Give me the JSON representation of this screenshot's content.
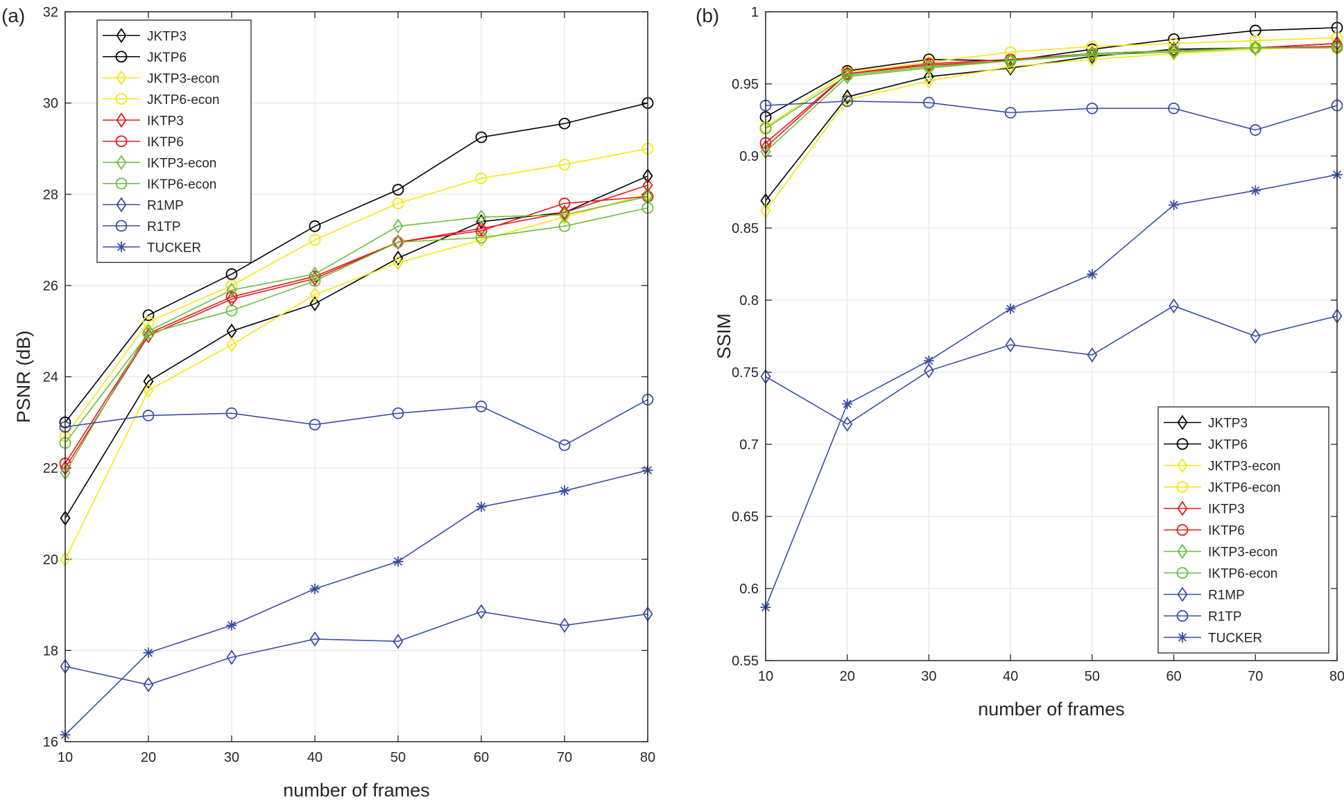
{
  "figure": {
    "legend_entries": [
      "JKTP3",
      "JKTP6",
      "JKTP3-econ",
      "JKTP6-econ",
      "IKTP3",
      "IKTP6",
      "IKTP3-econ",
      "IKTP6-econ",
      "R1MP",
      "R1TP",
      "TUCKER"
    ]
  },
  "chart_data": [
    {
      "type": "line",
      "panel_label": "(a)",
      "xlabel": "number of frames",
      "ylabel": "PSNR (dB)",
      "xlim": [
        10,
        80
      ],
      "ylim": [
        16,
        32
      ],
      "xticks": [
        10,
        20,
        30,
        40,
        50,
        60,
        70,
        80
      ],
      "yticks": [
        16,
        18,
        20,
        22,
        24,
        26,
        28,
        30,
        32
      ],
      "grid": true,
      "legend": "top-left",
      "x": [
        10,
        20,
        30,
        40,
        50,
        60,
        70,
        80
      ],
      "series": [
        {
          "name": "JKTP3",
          "color": "#000000",
          "marker": "diamond",
          "values": [
            20.9,
            23.9,
            25.0,
            25.6,
            26.6,
            27.4,
            27.6,
            28.4
          ]
        },
        {
          "name": "JKTP6",
          "color": "#000000",
          "marker": "circle",
          "values": [
            23.0,
            25.35,
            26.25,
            27.3,
            28.1,
            29.25,
            29.55,
            30.0
          ]
        },
        {
          "name": "JKTP3-econ",
          "color": "#f5e60e",
          "marker": "diamond",
          "values": [
            20.0,
            23.7,
            24.7,
            25.8,
            26.5,
            27.0,
            27.5,
            28.0
          ]
        },
        {
          "name": "JKTP6-econ",
          "color": "#f5e60e",
          "marker": "circle",
          "values": [
            22.7,
            25.2,
            26.0,
            27.0,
            27.8,
            28.35,
            28.65,
            29.0
          ]
        },
        {
          "name": "IKTP3",
          "color": "#e41a1c",
          "marker": "diamond",
          "values": [
            22.0,
            24.9,
            25.7,
            26.15,
            26.95,
            27.25,
            27.6,
            28.2
          ]
        },
        {
          "name": "IKTP6",
          "color": "#e41a1c",
          "marker": "circle",
          "values": [
            22.1,
            24.95,
            25.75,
            26.2,
            26.95,
            27.2,
            27.8,
            27.95
          ]
        },
        {
          "name": "IKTP3-econ",
          "color": "#6abf3a",
          "marker": "diamond",
          "values": [
            21.9,
            25.0,
            25.9,
            26.25,
            27.3,
            27.5,
            27.55,
            27.95
          ]
        },
        {
          "name": "IKTP6-econ",
          "color": "#6abf3a",
          "marker": "circle",
          "values": [
            22.55,
            24.95,
            25.45,
            26.1,
            26.95,
            27.05,
            27.3,
            27.7
          ]
        },
        {
          "name": "R1MP",
          "color": "#3a4ea6",
          "marker": "diamond",
          "values": [
            17.65,
            17.25,
            17.85,
            18.25,
            18.2,
            18.85,
            18.55,
            18.8
          ]
        },
        {
          "name": "R1TP",
          "color": "#3a4ea6",
          "marker": "circle",
          "values": [
            22.9,
            23.15,
            23.2,
            22.95,
            23.2,
            23.35,
            22.5,
            23.5
          ]
        },
        {
          "name": "TUCKER",
          "color": "#3a4ea6",
          "marker": "asterisk",
          "values": [
            16.15,
            17.95,
            18.55,
            19.35,
            19.95,
            21.15,
            21.5,
            21.95
          ]
        }
      ]
    },
    {
      "type": "line",
      "panel_label": "(b)",
      "xlabel": "number of frames",
      "ylabel": "SSIM",
      "xlim": [
        10,
        80
      ],
      "ylim": [
        0.55,
        1.0
      ],
      "xticks": [
        10,
        20,
        30,
        40,
        50,
        60,
        70,
        80
      ],
      "yticks": [
        0.55,
        0.6,
        0.65,
        0.7,
        0.75,
        0.8,
        0.85,
        0.9,
        0.95,
        1
      ],
      "grid": true,
      "legend": "bottom-right",
      "x": [
        10,
        20,
        30,
        40,
        50,
        60,
        70,
        80
      ],
      "series": [
        {
          "name": "JKTP3",
          "color": "#000000",
          "marker": "diamond",
          "values": [
            0.869,
            0.941,
            0.955,
            0.961,
            0.969,
            0.974,
            0.975,
            0.978
          ]
        },
        {
          "name": "JKTP6",
          "color": "#000000",
          "marker": "circle",
          "values": [
            0.927,
            0.959,
            0.967,
            0.966,
            0.974,
            0.981,
            0.987,
            0.989
          ]
        },
        {
          "name": "JKTP3-econ",
          "color": "#f5e60e",
          "marker": "diamond",
          "values": [
            0.862,
            0.939,
            0.952,
            0.962,
            0.967,
            0.971,
            0.974,
            0.976
          ]
        },
        {
          "name": "JKTP6-econ",
          "color": "#f5e60e",
          "marker": "circle",
          "values": [
            0.92,
            0.958,
            0.965,
            0.972,
            0.976,
            0.978,
            0.98,
            0.982
          ]
        },
        {
          "name": "IKTP3",
          "color": "#e41a1c",
          "marker": "diamond",
          "values": [
            0.906,
            0.957,
            0.963,
            0.966,
            0.971,
            0.973,
            0.975,
            0.978
          ]
        },
        {
          "name": "IKTP6",
          "color": "#e41a1c",
          "marker": "circle",
          "values": [
            0.909,
            0.957,
            0.964,
            0.967,
            0.971,
            0.973,
            0.975,
            0.976
          ]
        },
        {
          "name": "IKTP3-econ",
          "color": "#6abf3a",
          "marker": "diamond",
          "values": [
            0.903,
            0.955,
            0.961,
            0.966,
            0.97,
            0.972,
            0.975,
            0.975
          ]
        },
        {
          "name": "IKTP6-econ",
          "color": "#6abf3a",
          "marker": "circle",
          "values": [
            0.919,
            0.956,
            0.962,
            0.966,
            0.971,
            0.973,
            0.975,
            0.975
          ]
        },
        {
          "name": "R1MP",
          "color": "#3a4ea6",
          "marker": "diamond",
          "values": [
            0.747,
            0.714,
            0.751,
            0.769,
            0.762,
            0.796,
            0.775,
            0.789
          ]
        },
        {
          "name": "R1TP",
          "color": "#3a4ea6",
          "marker": "circle",
          "values": [
            0.935,
            0.938,
            0.937,
            0.93,
            0.933,
            0.933,
            0.918,
            0.935
          ]
        },
        {
          "name": "TUCKER",
          "color": "#3a4ea6",
          "marker": "asterisk",
          "values": [
            0.587,
            0.728,
            0.758,
            0.794,
            0.818,
            0.866,
            0.876,
            0.887
          ]
        }
      ]
    }
  ]
}
